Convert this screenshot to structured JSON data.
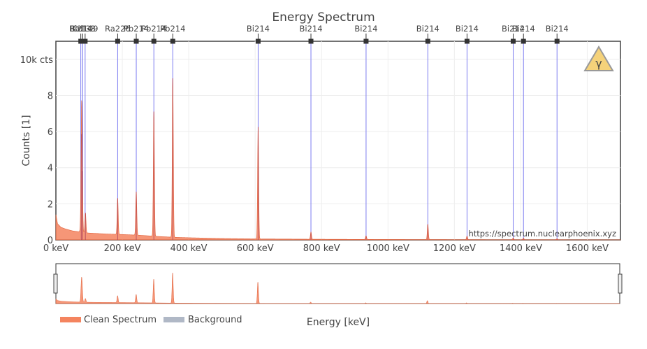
{
  "chart_data": {
    "type": "area",
    "title": "Energy Spectrum",
    "xlabel": "Energy [keV]",
    "ylabel": "Counts [1]",
    "xlim": [
      0,
      1700
    ],
    "ylim": [
      0,
      11000
    ],
    "x_ticks": [
      {
        "v": 0,
        "label": "0 keV"
      },
      {
        "v": 200,
        "label": "200 keV"
      },
      {
        "v": 400,
        "label": "400 keV"
      },
      {
        "v": 600,
        "label": "600 keV"
      },
      {
        "v": 800,
        "label": "800 keV"
      },
      {
        "v": 1000,
        "label": "1000 keV"
      },
      {
        "v": 1200,
        "label": "1200 keV"
      },
      {
        "v": 1400,
        "label": "1400 keV"
      },
      {
        "v": 1600,
        "label": "1600 keV"
      }
    ],
    "y_ticks": [
      {
        "v": 0,
        "label": "0"
      },
      {
        "v": 2000,
        "label": "2"
      },
      {
        "v": 4000,
        "label": "4"
      },
      {
        "v": 6000,
        "label": "6"
      },
      {
        "v": 8000,
        "label": "8"
      },
      {
        "v": 10000,
        "label": "10k cts"
      }
    ],
    "grid": true,
    "legend_position": "bottom-left",
    "series": [
      {
        "name": "Clean Spectrum",
        "color": "#f4845f",
        "continuum": [
          [
            0,
            1400
          ],
          [
            5,
            900
          ],
          [
            15,
            700
          ],
          [
            30,
            600
          ],
          [
            50,
            500
          ],
          [
            70,
            450
          ],
          [
            75,
            600
          ],
          [
            85,
            400
          ],
          [
            100,
            380
          ],
          [
            150,
            330
          ],
          [
            200,
            300
          ],
          [
            250,
            260
          ],
          [
            300,
            200
          ],
          [
            350,
            150
          ],
          [
            400,
            120
          ],
          [
            450,
            100
          ],
          [
            500,
            80
          ],
          [
            600,
            55
          ],
          [
            700,
            45
          ],
          [
            800,
            35
          ],
          [
            900,
            28
          ],
          [
            1000,
            22
          ],
          [
            1100,
            18
          ],
          [
            1200,
            14
          ],
          [
            1300,
            10
          ],
          [
            1400,
            8
          ],
          [
            1500,
            6
          ],
          [
            1600,
            4
          ],
          [
            1700,
            3
          ]
        ],
        "peaks": [
          {
            "x": 77,
            "y": 5300
          },
          {
            "x": 79,
            "y": 3300
          },
          {
            "x": 89,
            "y": 1100
          },
          {
            "x": 186,
            "y": 2000
          },
          {
            "x": 242,
            "y": 2400
          },
          {
            "x": 295,
            "y": 6900
          },
          {
            "x": 352,
            "y": 8800
          },
          {
            "x": 609,
            "y": 6200
          },
          {
            "x": 768,
            "y": 400
          },
          {
            "x": 934,
            "y": 200
          },
          {
            "x": 1120,
            "y": 850
          },
          {
            "x": 1238,
            "y": 200
          },
          {
            "x": 1377,
            "y": 100
          },
          {
            "x": 1408,
            "y": 90
          },
          {
            "x": 1509,
            "y": 60
          }
        ]
      },
      {
        "name": "Background",
        "color": "#b0b8c6",
        "continuum": [],
        "peaks": []
      }
    ],
    "isotope_lines": [
      {
        "energy": 75,
        "label": "Bi214"
      },
      {
        "energy": 81,
        "label": "Ba133"
      },
      {
        "energy": 88,
        "label": "Cd109"
      },
      {
        "energy": 186,
        "label": "Ra226"
      },
      {
        "energy": 242,
        "label": "Pb214"
      },
      {
        "energy": 295,
        "label": "Pb214"
      },
      {
        "energy": 352,
        "label": "Pb214"
      },
      {
        "energy": 609,
        "label": "Bi214"
      },
      {
        "energy": 768,
        "label": "Bi214"
      },
      {
        "energy": 934,
        "label": "Bi214"
      },
      {
        "energy": 1120,
        "label": "Bi214"
      },
      {
        "energy": 1238,
        "label": "Bi214"
      },
      {
        "energy": 1377,
        "label": "Bi214"
      },
      {
        "energy": 1408,
        "label": "Bi214"
      },
      {
        "energy": 1509,
        "label": "Bi214"
      }
    ],
    "line_color": "#7b7bf0",
    "watermark": "https://spectrum.nuclearphoenix.xyz",
    "badge_symbol": "γ",
    "badge_color": "#f5d27a"
  }
}
